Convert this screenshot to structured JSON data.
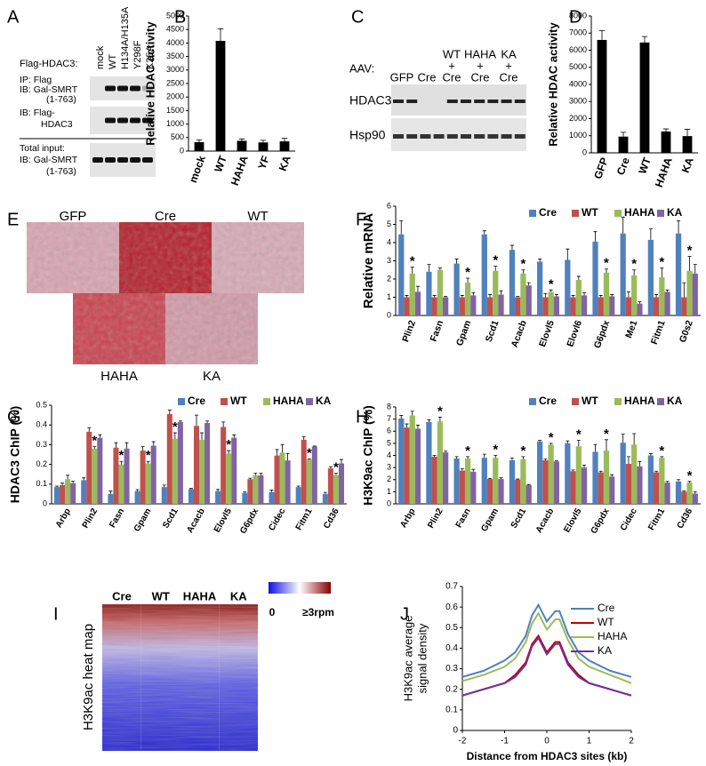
{
  "chart_data": [
    {
      "type": "bar",
      "panel": "B",
      "y_label": "Relative HDAC activity",
      "categories": [
        "mock",
        "WT",
        "HAHA",
        "YF",
        "KA"
      ],
      "values": [
        330,
        4080,
        380,
        320,
        360
      ],
      "errors": [
        80,
        450,
        70,
        80,
        110
      ],
      "color": "#000000",
      "ylim": [
        0,
        5000
      ],
      "yticks": [
        0,
        500,
        1000,
        1500,
        2000,
        2500,
        3000,
        3500,
        4000,
        4500,
        5000
      ]
    },
    {
      "type": "bar",
      "panel": "D",
      "y_label": "Relative HDAC activity",
      "categories": [
        "GFP",
        "Cre",
        "WT",
        "HAHA",
        "KA"
      ],
      "values": [
        6600,
        950,
        6450,
        1250,
        980
      ],
      "errors": [
        550,
        250,
        350,
        150,
        400
      ],
      "color": "#000000",
      "ylim": [
        0,
        8000
      ],
      "yticks": [
        0,
        1000,
        2000,
        3000,
        4000,
        5000,
        6000,
        7000,
        8000
      ]
    },
    {
      "type": "bar",
      "panel": "F",
      "y_label": "Relative mRNA",
      "legend": "top",
      "categories": [
        "Plin2",
        "Fasn",
        "Gpam",
        "Scd1",
        "Acacb",
        "Elovl5",
        "Elovl6",
        "G6pdx",
        "Me1",
        "Fitm1",
        "G0s2"
      ],
      "series": [
        {
          "name": "Cre",
          "color": "#4f81bd",
          "values": [
            4.45,
            2.4,
            2.85,
            4.45,
            3.6,
            2.95,
            3.05,
            4.05,
            4.5,
            4.15,
            4.5
          ],
          "errors": [
            0.75,
            0.4,
            0.25,
            0.2,
            0.25,
            0.15,
            0.6,
            0.55,
            0.9,
            0.6,
            0.7
          ]
        },
        {
          "name": "WT",
          "color": "#c0504d",
          "values": [
            1,
            1,
            1,
            1,
            1,
            1,
            1,
            1,
            1,
            1,
            1
          ],
          "errors": [
            0.1,
            0.1,
            0.1,
            0.15,
            0.05,
            0.2,
            0.1,
            0.1,
            0.3,
            0.15,
            0.8
          ]
        },
        {
          "name": "HAHA",
          "color": "#9bbb59",
          "values": [
            2.3,
            2.5,
            1.8,
            2.45,
            2.3,
            1.3,
            1.95,
            2.35,
            2.2,
            2.1,
            2.45
          ],
          "errors": [
            0.35,
            0.1,
            0.25,
            0.25,
            0.2,
            0.1,
            0.2,
            0.2,
            0.3,
            0.5,
            0.8
          ]
        },
        {
          "name": "KA",
          "color": "#8064a2",
          "values": [
            1.3,
            1.0,
            1.1,
            1.15,
            1.65,
            1.05,
            1.1,
            1.05,
            0.65,
            1.3,
            2.3
          ],
          "errors": [
            0.3,
            0.05,
            0.15,
            0.2,
            0.15,
            0.1,
            0.15,
            0.1,
            0.1,
            0.1,
            0.5
          ]
        }
      ],
      "annotations": [
        {
          "x": "Plin2",
          "text": "*"
        },
        {
          "x": "Gpam",
          "text": "*"
        },
        {
          "x": "Scd1",
          "text": "*"
        },
        {
          "x": "Acacb",
          "text": "*"
        },
        {
          "x": "Elovl5",
          "text": "*"
        },
        {
          "x": "G6pdx",
          "text": "*"
        },
        {
          "x": "Me1",
          "text": "*"
        },
        {
          "x": "Fitm1",
          "text": "*"
        },
        {
          "x": "G0s2",
          "text": "*"
        }
      ],
      "ylim": [
        0,
        6
      ],
      "yticks": [
        0,
        1,
        2,
        3,
        4,
        5,
        6
      ]
    },
    {
      "type": "bar",
      "panel": "G",
      "y_label": "HDAC3 ChIP (%)",
      "legend": "top",
      "categories": [
        "Arbp",
        "Plin2",
        "Fasn",
        "Gpam",
        "Scd1",
        "Acacb",
        "Elovl5",
        "G6pdx",
        "Cidec",
        "Fitm1",
        "Cd36"
      ],
      "series": [
        {
          "name": "Cre",
          "color": "#4f81bd",
          "values": [
            0.085,
            0.12,
            0.05,
            0.065,
            0.085,
            0.075,
            0.065,
            0.055,
            0.06,
            0.085,
            0.05
          ],
          "errors": [
            0.005,
            0.012,
            0.015,
            0.007,
            0.01,
            0.003,
            0.008,
            0.005,
            0.01,
            0.005,
            0.008
          ]
        },
        {
          "name": "WT",
          "color": "#c0504d",
          "values": [
            0.095,
            0.365,
            0.285,
            0.27,
            0.455,
            0.395,
            0.39,
            0.125,
            0.245,
            0.325,
            0.18
          ],
          "errors": [
            0.01,
            0.02,
            0.025,
            0.02,
            0.02,
            0.055,
            0.025,
            0.005,
            0.03,
            0.015,
            0.008
          ]
        },
        {
          "name": "HAHA",
          "color": "#9bbb59",
          "values": [
            0.125,
            0.28,
            0.2,
            0.205,
            0.33,
            0.325,
            0.255,
            0.145,
            0.26,
            0.225,
            0.145
          ],
          "errors": [
            0.02,
            0.01,
            0.015,
            0.01,
            0.03,
            0.035,
            0.015,
            0.01,
            0.04,
            0.003,
            0.01
          ]
        },
        {
          "name": "KA",
          "color": "#8064a2",
          "values": [
            0.105,
            0.335,
            0.28,
            0.295,
            0.415,
            0.41,
            0.335,
            0.145,
            0.22,
            0.29,
            0.205
          ],
          "errors": [
            0.01,
            0.015,
            0.03,
            0.02,
            0.005,
            0.01,
            0.015,
            0.01,
            0.035,
            0.003,
            0.02
          ]
        }
      ],
      "annotations": [
        {
          "x": "Plin2",
          "text": "*"
        },
        {
          "x": "Fasn",
          "text": "*"
        },
        {
          "x": "Gpam",
          "text": "*"
        },
        {
          "x": "Scd1",
          "text": "*"
        },
        {
          "x": "Elovl5",
          "text": "*"
        },
        {
          "x": "Fitm1",
          "text": "*"
        },
        {
          "x": "Cd36",
          "text": "*"
        }
      ],
      "ylim": [
        0,
        0.5
      ],
      "yticks": [
        0,
        0.1,
        0.2,
        0.3,
        0.4,
        0.5
      ]
    },
    {
      "type": "bar",
      "panel": "H",
      "y_label": "H3K9ac ChIP (%)",
      "legend": "top",
      "categories": [
        "Arbp",
        "Plin2",
        "Fasn",
        "Gpam",
        "Scd1",
        "Acacb",
        "Elovl5",
        "G6pdx",
        "Cidec",
        "Fitm1",
        "Cd36"
      ],
      "series": [
        {
          "name": "Cre",
          "color": "#4f81bd",
          "values": [
            7.05,
            6.75,
            3.75,
            3.8,
            3.6,
            5.15,
            5.0,
            4.3,
            5.05,
            4.0,
            1.85
          ],
          "errors": [
            0.25,
            0.2,
            0.15,
            0.3,
            0.2,
            0.1,
            0.2,
            0.6,
            0.7,
            0.15,
            0.15
          ]
        },
        {
          "name": "WT",
          "color": "#c0504d",
          "values": [
            6.3,
            3.9,
            2.75,
            2.05,
            2.0,
            3.6,
            2.7,
            2.6,
            3.3,
            2.6,
            1.0
          ],
          "errors": [
            0.3,
            0.1,
            0.15,
            0.05,
            0.05,
            0.1,
            0.1,
            0.1,
            0.6,
            0.1,
            0.05
          ]
        },
        {
          "name": "HAHA",
          "color": "#9bbb59",
          "values": [
            7.3,
            6.8,
            3.75,
            3.8,
            3.7,
            4.9,
            4.75,
            4.4,
            4.9,
            3.8,
            1.75
          ],
          "errors": [
            0.35,
            0.35,
            0.15,
            0.2,
            0.2,
            0.1,
            0.5,
            0.9,
            0.9,
            0.1,
            0.1
          ]
        },
        {
          "name": "KA",
          "color": "#8064a2",
          "values": [
            6.2,
            4.25,
            2.65,
            2.05,
            1.55,
            3.5,
            3.0,
            2.25,
            3.1,
            1.75,
            0.85
          ],
          "errors": [
            0.3,
            0.1,
            0.2,
            0.1,
            0.05,
            0.05,
            0.2,
            0.15,
            0.4,
            0.1,
            0.15
          ]
        }
      ],
      "annotations": [
        {
          "x": "Plin2",
          "text": "*"
        },
        {
          "x": "Fasn",
          "text": "*"
        },
        {
          "x": "Gpam",
          "text": "*"
        },
        {
          "x": "Scd1",
          "text": "*"
        },
        {
          "x": "Acacb",
          "text": "*"
        },
        {
          "x": "Elovl5",
          "text": "*"
        },
        {
          "x": "G6pdx",
          "text": "*"
        },
        {
          "x": "Fitm1",
          "text": "*"
        },
        {
          "x": "Cd36",
          "text": "*"
        }
      ],
      "ylim": [
        0,
        8
      ],
      "yticks": [
        0,
        1,
        2,
        3,
        4,
        5,
        6,
        7,
        8
      ]
    },
    {
      "type": "line",
      "panel": "J",
      "x_label": "Distance from HDAC3 sites (kb)",
      "y_label": [
        "H3K9ac average",
        "signal density"
      ],
      "legend": "upper right",
      "x": [
        -2,
        -1.5,
        -1,
        -0.75,
        -0.5,
        -0.35,
        -0.2,
        0,
        0.2,
        0.3,
        0.5,
        0.75,
        1,
        1.5,
        2
      ],
      "series": [
        {
          "name": "Cre",
          "color": "#4f81bd",
          "values": [
            0.26,
            0.29,
            0.34,
            0.38,
            0.46,
            0.56,
            0.61,
            0.53,
            0.58,
            0.58,
            0.47,
            0.38,
            0.34,
            0.29,
            0.26
          ]
        },
        {
          "name": "WT",
          "color": "#c00000",
          "values": [
            0.17,
            0.2,
            0.23,
            0.27,
            0.33,
            0.42,
            0.46,
            0.38,
            0.43,
            0.43,
            0.33,
            0.27,
            0.23,
            0.2,
            0.17
          ]
        },
        {
          "name": "HAHA",
          "color": "#9bbb59",
          "values": [
            0.24,
            0.27,
            0.31,
            0.35,
            0.43,
            0.52,
            0.57,
            0.49,
            0.54,
            0.54,
            0.44,
            0.35,
            0.31,
            0.27,
            0.23
          ]
        },
        {
          "name": "KA",
          "color": "#7030a0",
          "values": [
            0.17,
            0.2,
            0.23,
            0.26,
            0.32,
            0.41,
            0.45,
            0.37,
            0.42,
            0.42,
            0.32,
            0.26,
            0.23,
            0.2,
            0.17
          ]
        }
      ],
      "xlim": [
        -2,
        2
      ],
      "xticks": [
        -2,
        -1,
        0,
        1,
        2
      ],
      "ylim": [
        0,
        0.7
      ],
      "yticks": [
        0,
        0.1,
        0.2,
        0.3,
        0.4,
        0.5,
        0.6,
        0.7
      ]
    }
  ],
  "figure": {
    "blot_a": {
      "panel": "A",
      "header": "Flag-HDAC3:",
      "lanes": [
        "mock",
        "WT",
        "H134A/H135A",
        "Y298F",
        "K25A"
      ],
      "rows": [
        [
          "IP: Flag",
          "IB: Gal-SMRT",
          "(1-763)"
        ],
        [
          "IB: Flag-",
          "HDAC3"
        ],
        [
          "Total input:",
          "IB: Gal-SMRT",
          "(1-763)"
        ]
      ]
    },
    "blot_c": {
      "panel": "C",
      "header": "AAV:",
      "lanes": [
        [
          "GFP"
        ],
        [
          "Cre"
        ],
        [
          "WT",
          "+",
          "Cre"
        ],
        [
          "HAHA",
          "+",
          "Cre"
        ],
        [
          "KA",
          "+",
          "Cre"
        ]
      ],
      "rows": [
        "HDAC3",
        "Hsp90"
      ]
    },
    "histology_e": {
      "panel": "E",
      "samples": [
        "GFP",
        "Cre",
        "WT",
        "HAHA",
        "KA"
      ]
    },
    "heatmap_i": {
      "panel": "I",
      "columns": [
        "Cre",
        "WT",
        "HAHA",
        "KA"
      ],
      "title": "H3K9ac heat map",
      "scale_min": "0",
      "scale_max": "≥3rpm"
    }
  }
}
